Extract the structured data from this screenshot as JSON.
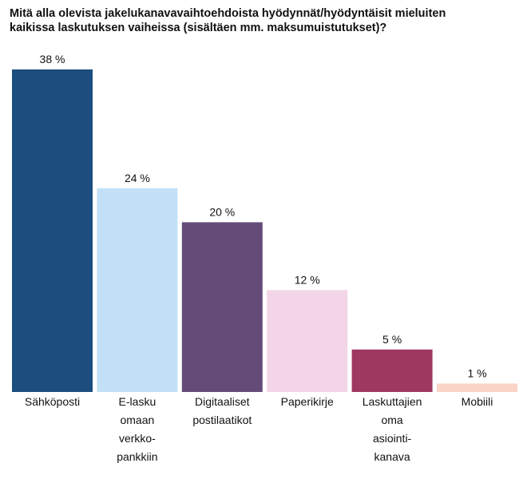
{
  "title": "Mitä alla olevista jakelukanavavaihtoehdoista hyödynnät/hyödyntäisit mieluiten\nkaikissa laskutuksen vaiheissa (sisältäen mm. maksumuistutukset)?",
  "chart_data": {
    "type": "bar",
    "title": "Mitä alla olevista jakelukanavavaihtoehdoista hyödynnät/hyödyntäisit mieluiten kaikissa laskutuksen vaiheissa (sisältäen mm. maksumuistutukset)?",
    "categories": [
      "Sähköposti",
      "E-lasku omaan verkko-pankkiin",
      "Digitaaliset postilaatikot",
      "Paperikirje",
      "Laskuttajien oma asiointi-kanava",
      "Mobiili"
    ],
    "category_lines": [
      [
        "Sähköposti"
      ],
      [
        "E-lasku",
        "omaan",
        "verkko-",
        "pankkiin"
      ],
      [
        "Digitaaliset",
        "postilaatikot"
      ],
      [
        "Paperikirje"
      ],
      [
        "Laskuttajien",
        "oma",
        "asiointi-",
        "kanava"
      ],
      [
        "Mobiili"
      ]
    ],
    "values": [
      38,
      24,
      20,
      12,
      5,
      1
    ],
    "value_labels": [
      "38 %",
      "24 %",
      "20 %",
      "12 %",
      "5 %",
      "1 %"
    ],
    "unit": "%",
    "colors": [
      "#1b4d7e",
      "#c2e1f7",
      "#654b77",
      "#f2d5e6",
      "#9e3861",
      "#fbd4c8"
    ],
    "ylim": [
      0,
      38
    ],
    "grid": false,
    "xlabel": "",
    "ylabel": ""
  }
}
